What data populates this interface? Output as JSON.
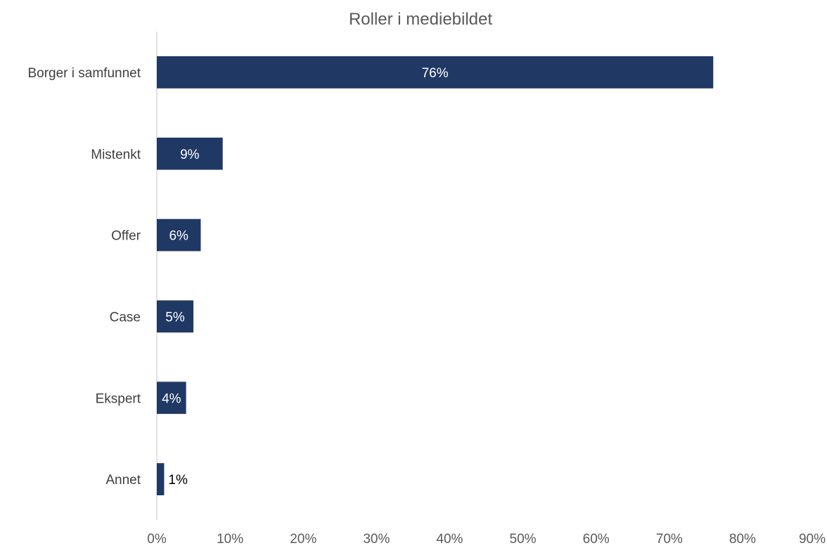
{
  "chart_data": {
    "type": "bar",
    "orientation": "horizontal",
    "title": "Roller i mediebildet",
    "categories": [
      "Borger i samfunnet",
      "Mistenkt",
      "Offer",
      "Case",
      "Ekspert",
      "Annet"
    ],
    "values": [
      76,
      9,
      6,
      5,
      4,
      1
    ],
    "data_labels": [
      "76%",
      "9%",
      "6%",
      "5%",
      "4%",
      "1%"
    ],
    "xlim": [
      0,
      90
    ],
    "x_ticks": [
      0,
      10,
      20,
      30,
      40,
      50,
      60,
      70,
      80,
      90
    ],
    "x_tick_labels": [
      "0%",
      "10%",
      "20%",
      "30%",
      "40%",
      "50%",
      "60%",
      "70%",
      "80%",
      "90%"
    ],
    "bar_color": "#203864",
    "label_inside_color": "#ffffff",
    "label_outside_color": "#000000",
    "axis_color": "#d9d9d9",
    "grid": false,
    "legend": "none"
  }
}
